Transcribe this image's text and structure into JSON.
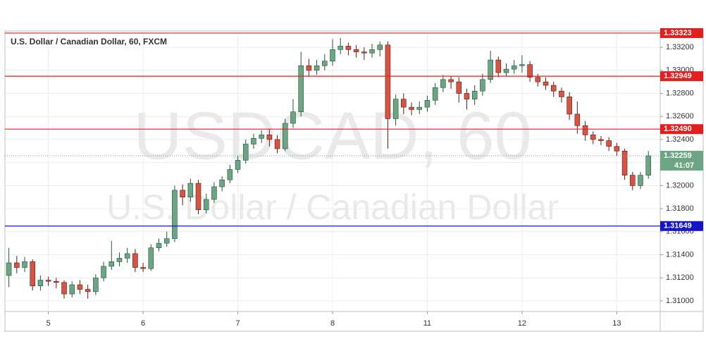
{
  "chart_data": {
    "type": "candlestick",
    "title": "U.S. Dollar / Canadian Dollar, 60, FXCM",
    "watermark": [
      "USDCAD, 60",
      "U.S. Dollar / Canadian Dollar"
    ],
    "x": [
      -10,
      -8,
      -6,
      -4,
      -2,
      0,
      2,
      4,
      6,
      8,
      10,
      12,
      14,
      16,
      18,
      20,
      22,
      24,
      26,
      28,
      30,
      32,
      34,
      36,
      38,
      40,
      42,
      44,
      46,
      48,
      50,
      52,
      54,
      56,
      58,
      60,
      62,
      64,
      66,
      68,
      70,
      72,
      74,
      76,
      78,
      80,
      82,
      84,
      86,
      88,
      90,
      92,
      94,
      96,
      98,
      100,
      102,
      104,
      106,
      108,
      110,
      112,
      114,
      116,
      118,
      120,
      122,
      124,
      126,
      128,
      130,
      132,
      134,
      136,
      138,
      140,
      142,
      144,
      146,
      148,
      150,
      152
    ],
    "open": [
      1.3122,
      1.3133,
      1.3129,
      1.3134,
      1.3113,
      1.3118,
      1.3117,
      1.3116,
      1.3106,
      1.3114,
      1.311,
      1.3108,
      1.312,
      1.313,
      1.3134,
      1.3137,
      1.3141,
      1.3129,
      1.3128,
      1.3146,
      1.315,
      1.3154,
      1.3196,
      1.319,
      1.3202,
      1.3179,
      1.3188,
      1.3199,
      1.3205,
      1.3214,
      1.3222,
      1.3236,
      1.3241,
      1.3244,
      1.324,
      1.3232,
      1.3254,
      1.3264,
      1.3304,
      1.33,
      1.3304,
      1.3308,
      1.3318,
      1.3321,
      1.3318,
      1.3316,
      1.3315,
      1.3318,
      1.3322,
      1.3258,
      1.3275,
      1.3268,
      1.3266,
      1.3268,
      1.3274,
      1.3285,
      1.3292,
      1.329,
      1.328,
      1.3275,
      1.3282,
      1.3292,
      1.3309,
      1.3298,
      1.3301,
      1.3304,
      1.3305,
      1.3294,
      1.329,
      1.3287,
      1.3282,
      1.3277,
      1.3262,
      1.3252,
      1.3244,
      1.324,
      1.3239,
      1.3234,
      1.323,
      1.3209,
      1.32,
      1.3209
    ],
    "high": [
      1.3146,
      1.3139,
      1.3138,
      1.3136,
      1.3122,
      1.3121,
      1.312,
      1.3118,
      1.3117,
      1.3118,
      1.3114,
      1.3123,
      1.3134,
      1.3152,
      1.3142,
      1.3146,
      1.3145,
      1.3133,
      1.3149,
      1.3154,
      1.316,
      1.32,
      1.3201,
      1.3206,
      1.3205,
      1.3193,
      1.3203,
      1.3208,
      1.3218,
      1.3226,
      1.324,
      1.3245,
      1.3248,
      1.3249,
      1.3244,
      1.3258,
      1.3275,
      1.3316,
      1.331,
      1.3309,
      1.3314,
      1.3327,
      1.3328,
      1.3324,
      1.3322,
      1.332,
      1.3323,
      1.3325,
      1.3325,
      1.3279,
      1.328,
      1.3272,
      1.3273,
      1.3278,
      1.3289,
      1.3296,
      1.3295,
      1.3294,
      1.3284,
      1.3287,
      1.3297,
      1.3317,
      1.3312,
      1.3306,
      1.3309,
      1.3313,
      1.3308,
      1.3297,
      1.3294,
      1.329,
      1.3285,
      1.3281,
      1.3273,
      1.3256,
      1.3247,
      1.3243,
      1.3242,
      1.3237,
      1.3232,
      1.3212,
      1.3212,
      1.323
    ],
    "low": [
      1.3112,
      1.3124,
      1.3125,
      1.3109,
      1.3109,
      1.3113,
      1.3111,
      1.3102,
      1.3103,
      1.3106,
      1.3102,
      1.3105,
      1.3117,
      1.3127,
      1.313,
      1.3133,
      1.3125,
      1.3125,
      1.3126,
      1.3143,
      1.3147,
      1.3151,
      1.3183,
      1.3186,
      1.3175,
      1.3176,
      1.3185,
      1.3195,
      1.3202,
      1.3211,
      1.3219,
      1.3232,
      1.3237,
      1.3234,
      1.3228,
      1.323,
      1.325,
      1.326,
      1.3295,
      1.3296,
      1.33,
      1.3304,
      1.3314,
      1.3313,
      1.3311,
      1.3309,
      1.3311,
      1.3312,
      1.3232,
      1.3252,
      1.3262,
      1.3261,
      1.3262,
      1.3264,
      1.327,
      1.3281,
      1.3284,
      1.3272,
      1.3266,
      1.327,
      1.3278,
      1.3289,
      1.3294,
      1.3295,
      1.3297,
      1.3298,
      1.329,
      1.3286,
      1.3283,
      1.3277,
      1.3272,
      1.3257,
      1.3245,
      1.3239,
      1.3236,
      1.3235,
      1.323,
      1.3226,
      1.3205,
      1.3196,
      1.3197,
      1.3206
    ],
    "close": [
      1.3133,
      1.3129,
      1.3134,
      1.3113,
      1.3118,
      1.3117,
      1.3116,
      1.3106,
      1.3114,
      1.311,
      1.3108,
      1.312,
      1.313,
      1.3134,
      1.3137,
      1.3141,
      1.3129,
      1.3128,
      1.3146,
      1.315,
      1.3154,
      1.3196,
      1.319,
      1.3202,
      1.3179,
      1.3188,
      1.3199,
      1.3205,
      1.3214,
      1.3222,
      1.3236,
      1.3241,
      1.3244,
      1.324,
      1.3232,
      1.3254,
      1.3264,
      1.3304,
      1.33,
      1.3304,
      1.3308,
      1.3318,
      1.3321,
      1.3318,
      1.3316,
      1.3315,
      1.3318,
      1.3322,
      1.3258,
      1.3275,
      1.3268,
      1.3266,
      1.3268,
      1.3274,
      1.3285,
      1.3292,
      1.329,
      1.328,
      1.3275,
      1.3282,
      1.3292,
      1.3309,
      1.3298,
      1.3301,
      1.3304,
      1.3305,
      1.3294,
      1.329,
      1.3287,
      1.3282,
      1.3277,
      1.3262,
      1.3252,
      1.3244,
      1.324,
      1.3239,
      1.3234,
      1.323,
      1.3209,
      1.32,
      1.3209,
      1.32259
    ],
    "colors": {
      "up": "#6ba583",
      "down": "#d75442",
      "up_wick": "#225437",
      "down_wick": "#5b1a13"
    },
    "xlim": [
      -11,
      155
    ],
    "ylim": [
      1.30908,
      1.33341
    ],
    "xticks": [
      {
        "value": 0,
        "label": "5"
      },
      {
        "value": 24,
        "label": "6"
      },
      {
        "value": 48,
        "label": "7"
      },
      {
        "value": 72,
        "label": "8"
      },
      {
        "value": 96,
        "label": "11"
      },
      {
        "value": 120,
        "label": "12"
      },
      {
        "value": 144,
        "label": "13"
      }
    ],
    "yticks": [
      {
        "value": 1.31,
        "label": "1.31000"
      },
      {
        "value": 1.312,
        "label": "1.31200"
      },
      {
        "value": 1.314,
        "label": "1.31400"
      },
      {
        "value": 1.316,
        "label": "1.31600"
      },
      {
        "value": 1.318,
        "label": "1.31800"
      },
      {
        "value": 1.32,
        "label": "1.32000"
      },
      {
        "value": 1.322,
        "label": "1.32200"
      },
      {
        "value": 1.324,
        "label": "1.32400"
      },
      {
        "value": 1.326,
        "label": "1.32600"
      },
      {
        "value": 1.328,
        "label": "1.32800"
      },
      {
        "value": 1.33,
        "label": "1.33000"
      },
      {
        "value": 1.332,
        "label": "1.33200"
      }
    ],
    "grid": true,
    "levels": [
      {
        "value": 1.33323,
        "color": "#e31e1e"
      },
      {
        "value": 1.32949,
        "color": "#e31e1e"
      },
      {
        "value": 1.3249,
        "label": "1.32490",
        "color": "#e31e1e"
      },
      {
        "value": 1.31649,
        "color": "#1515c8"
      }
    ],
    "current_price": {
      "value": 1.32259,
      "countdown": "41:07",
      "color": "#6ba583"
    }
  }
}
